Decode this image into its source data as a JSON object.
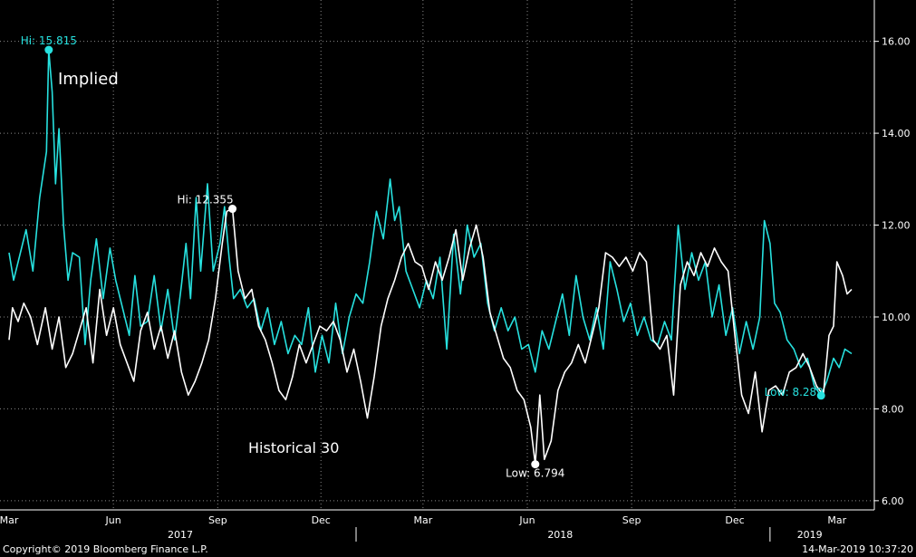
{
  "chart_data": {
    "type": "line",
    "y_axis": {
      "ticks": [
        "6.00",
        "8.00",
        "10.00",
        "12.00",
        "14.00",
        "16.00"
      ],
      "range": [
        5.8,
        16.9
      ],
      "position": "right"
    },
    "x_axis": {
      "months": [
        "Mar",
        "Jun",
        "Sep",
        "Dec",
        "Mar",
        "Jun",
        "Sep",
        "Dec",
        "Mar"
      ],
      "years": [
        "2017",
        "2018",
        "2019"
      ],
      "range": [
        "2017-03-01",
        "2019-03-14"
      ]
    },
    "grid": true,
    "series": [
      {
        "name": "Implied",
        "color": "#27e1df",
        "points": [
          [
            "2017-03-01",
            11.4
          ],
          [
            "2017-03-05",
            10.8
          ],
          [
            "2017-03-10",
            11.3
          ],
          [
            "2017-03-16",
            11.9
          ],
          [
            "2017-03-22",
            11.0
          ],
          [
            "2017-03-28",
            12.6
          ],
          [
            "2017-04-03",
            13.6
          ],
          [
            "2017-04-05",
            15.815
          ],
          [
            "2017-04-08",
            14.9
          ],
          [
            "2017-04-11",
            12.9
          ],
          [
            "2017-04-14",
            14.1
          ],
          [
            "2017-04-18",
            12.0
          ],
          [
            "2017-04-22",
            10.8
          ],
          [
            "2017-04-26",
            11.4
          ],
          [
            "2017-05-02",
            11.3
          ],
          [
            "2017-05-07",
            9.4
          ],
          [
            "2017-05-12",
            10.8
          ],
          [
            "2017-05-17",
            11.7
          ],
          [
            "2017-05-23",
            10.4
          ],
          [
            "2017-05-29",
            11.5
          ],
          [
            "2017-06-03",
            10.8
          ],
          [
            "2017-06-09",
            10.2
          ],
          [
            "2017-06-15",
            9.6
          ],
          [
            "2017-06-20",
            10.9
          ],
          [
            "2017-06-25",
            9.8
          ],
          [
            "2017-07-01",
            9.9
          ],
          [
            "2017-07-07",
            10.9
          ],
          [
            "2017-07-13",
            9.7
          ],
          [
            "2017-07-19",
            10.6
          ],
          [
            "2017-07-25",
            9.5
          ],
          [
            "2017-07-31",
            10.7
          ],
          [
            "2017-08-04",
            11.6
          ],
          [
            "2017-08-08",
            10.4
          ],
          [
            "2017-08-13",
            12.6
          ],
          [
            "2017-08-17",
            11.0
          ],
          [
            "2017-08-23",
            12.9
          ],
          [
            "2017-08-28",
            11.0
          ],
          [
            "2017-09-03",
            11.6
          ],
          [
            "2017-09-07",
            12.4
          ],
          [
            "2017-09-11",
            11.3
          ],
          [
            "2017-09-15",
            10.4
          ],
          [
            "2017-09-21",
            10.6
          ],
          [
            "2017-09-27",
            10.2
          ],
          [
            "2017-10-03",
            10.4
          ],
          [
            "2017-10-09",
            9.7
          ],
          [
            "2017-10-15",
            10.2
          ],
          [
            "2017-10-21",
            9.4
          ],
          [
            "2017-10-27",
            9.9
          ],
          [
            "2017-11-02",
            9.2
          ],
          [
            "2017-11-08",
            9.6
          ],
          [
            "2017-11-14",
            9.4
          ],
          [
            "2017-11-20",
            10.2
          ],
          [
            "2017-11-26",
            8.8
          ],
          [
            "2017-12-02",
            9.6
          ],
          [
            "2017-12-08",
            9.0
          ],
          [
            "2017-12-14",
            10.3
          ],
          [
            "2017-12-20",
            9.2
          ],
          [
            "2017-12-26",
            10.0
          ],
          [
            "2018-01-01",
            10.5
          ],
          [
            "2018-01-07",
            10.3
          ],
          [
            "2018-01-13",
            11.2
          ],
          [
            "2018-01-19",
            12.3
          ],
          [
            "2018-01-25",
            11.7
          ],
          [
            "2018-01-31",
            13.0
          ],
          [
            "2018-02-04",
            12.1
          ],
          [
            "2018-02-08",
            12.4
          ],
          [
            "2018-02-14",
            11.0
          ],
          [
            "2018-02-20",
            10.6
          ],
          [
            "2018-02-26",
            10.2
          ],
          [
            "2018-03-04",
            10.8
          ],
          [
            "2018-03-10",
            10.4
          ],
          [
            "2018-03-16",
            11.3
          ],
          [
            "2018-03-22",
            9.3
          ],
          [
            "2018-03-28",
            11.8
          ],
          [
            "2018-04-03",
            10.5
          ],
          [
            "2018-04-09",
            12.0
          ],
          [
            "2018-04-15",
            11.3
          ],
          [
            "2018-04-21",
            11.6
          ],
          [
            "2018-04-27",
            10.3
          ],
          [
            "2018-05-03",
            9.7
          ],
          [
            "2018-05-09",
            10.2
          ],
          [
            "2018-05-15",
            9.7
          ],
          [
            "2018-05-21",
            10.0
          ],
          [
            "2018-05-27",
            9.3
          ],
          [
            "2018-06-02",
            9.4
          ],
          [
            "2018-06-08",
            8.8
          ],
          [
            "2018-06-14",
            9.7
          ],
          [
            "2018-06-20",
            9.3
          ],
          [
            "2018-06-26",
            9.9
          ],
          [
            "2018-07-02",
            10.5
          ],
          [
            "2018-07-08",
            9.6
          ],
          [
            "2018-07-14",
            10.9
          ],
          [
            "2018-07-20",
            10.0
          ],
          [
            "2018-07-26",
            9.5
          ],
          [
            "2018-08-01",
            10.2
          ],
          [
            "2018-08-07",
            9.3
          ],
          [
            "2018-08-13",
            11.2
          ],
          [
            "2018-08-19",
            10.6
          ],
          [
            "2018-08-25",
            9.9
          ],
          [
            "2018-08-31",
            10.3
          ],
          [
            "2018-09-06",
            9.6
          ],
          [
            "2018-09-12",
            10.0
          ],
          [
            "2018-09-18",
            9.5
          ],
          [
            "2018-09-24",
            9.4
          ],
          [
            "2018-09-30",
            9.9
          ],
          [
            "2018-10-06",
            9.5
          ],
          [
            "2018-10-12",
            12.0
          ],
          [
            "2018-10-18",
            10.6
          ],
          [
            "2018-10-24",
            11.4
          ],
          [
            "2018-10-30",
            10.8
          ],
          [
            "2018-11-05",
            11.2
          ],
          [
            "2018-11-11",
            10.0
          ],
          [
            "2018-11-17",
            10.7
          ],
          [
            "2018-11-23",
            9.6
          ],
          [
            "2018-11-29",
            10.2
          ],
          [
            "2018-12-05",
            9.2
          ],
          [
            "2018-12-11",
            9.9
          ],
          [
            "2018-12-17",
            9.3
          ],
          [
            "2018-12-23",
            10.0
          ],
          [
            "2018-12-27",
            12.1
          ],
          [
            "2019-01-01",
            11.6
          ],
          [
            "2019-01-05",
            10.3
          ],
          [
            "2019-01-10",
            10.1
          ],
          [
            "2019-01-16",
            9.5
          ],
          [
            "2019-01-22",
            9.3
          ],
          [
            "2019-01-28",
            8.9
          ],
          [
            "2019-02-03",
            9.1
          ],
          [
            "2019-02-09",
            8.5
          ],
          [
            "2019-02-15",
            8.289
          ],
          [
            "2019-02-20",
            8.6
          ],
          [
            "2019-02-26",
            9.1
          ],
          [
            "2019-03-03",
            8.9
          ],
          [
            "2019-03-08",
            9.3
          ],
          [
            "2019-03-14",
            9.2
          ]
        ],
        "label": "Implied",
        "marker": {
          "date": "2017-04-05",
          "value": 15.815,
          "text": "Hi: 15.815"
        },
        "low_marker": {
          "date": "2019-02-15",
          "value": 8.289,
          "text": "Low: 8.289"
        }
      },
      {
        "name": "Historical 30",
        "color": "#ffffff",
        "points": [
          [
            "2017-03-01",
            9.5
          ],
          [
            "2017-03-04",
            10.2
          ],
          [
            "2017-03-09",
            9.9
          ],
          [
            "2017-03-14",
            10.3
          ],
          [
            "2017-03-20",
            10.0
          ],
          [
            "2017-03-26",
            9.4
          ],
          [
            "2017-04-02",
            10.2
          ],
          [
            "2017-04-08",
            9.3
          ],
          [
            "2017-04-14",
            10.0
          ],
          [
            "2017-04-20",
            8.9
          ],
          [
            "2017-04-26",
            9.2
          ],
          [
            "2017-05-02",
            9.7
          ],
          [
            "2017-05-08",
            10.2
          ],
          [
            "2017-05-14",
            9.0
          ],
          [
            "2017-05-20",
            10.6
          ],
          [
            "2017-05-26",
            9.6
          ],
          [
            "2017-06-01",
            10.2
          ],
          [
            "2017-06-07",
            9.4
          ],
          [
            "2017-06-13",
            9.0
          ],
          [
            "2017-06-19",
            8.6
          ],
          [
            "2017-06-25",
            9.7
          ],
          [
            "2017-07-01",
            10.1
          ],
          [
            "2017-07-07",
            9.3
          ],
          [
            "2017-07-13",
            9.8
          ],
          [
            "2017-07-19",
            9.1
          ],
          [
            "2017-07-25",
            9.7
          ],
          [
            "2017-07-31",
            8.8
          ],
          [
            "2017-08-06",
            8.3
          ],
          [
            "2017-08-12",
            8.6
          ],
          [
            "2017-08-18",
            9.0
          ],
          [
            "2017-08-24",
            9.5
          ],
          [
            "2017-08-30",
            10.4
          ],
          [
            "2017-09-05",
            11.6
          ],
          [
            "2017-09-09",
            12.3
          ],
          [
            "2017-09-14",
            12.355
          ],
          [
            "2017-09-19",
            11.0
          ],
          [
            "2017-09-25",
            10.4
          ],
          [
            "2017-10-01",
            10.6
          ],
          [
            "2017-10-07",
            9.8
          ],
          [
            "2017-10-13",
            9.5
          ],
          [
            "2017-10-19",
            9.0
          ],
          [
            "2017-10-25",
            8.4
          ],
          [
            "2017-10-31",
            8.2
          ],
          [
            "2017-11-06",
            8.7
          ],
          [
            "2017-11-12",
            9.4
          ],
          [
            "2017-11-18",
            9.0
          ],
          [
            "2017-11-24",
            9.4
          ],
          [
            "2017-11-30",
            9.8
          ],
          [
            "2017-12-06",
            9.7
          ],
          [
            "2017-12-12",
            9.9
          ],
          [
            "2017-12-18",
            9.5
          ],
          [
            "2017-12-24",
            8.8
          ],
          [
            "2017-12-30",
            9.3
          ],
          [
            "2018-01-05",
            8.6
          ],
          [
            "2018-01-11",
            7.8
          ],
          [
            "2018-01-17",
            8.7
          ],
          [
            "2018-01-23",
            9.8
          ],
          [
            "2018-01-29",
            10.4
          ],
          [
            "2018-02-04",
            10.8
          ],
          [
            "2018-02-10",
            11.3
          ],
          [
            "2018-02-16",
            11.6
          ],
          [
            "2018-02-22",
            11.2
          ],
          [
            "2018-02-28",
            11.1
          ],
          [
            "2018-03-06",
            10.6
          ],
          [
            "2018-03-12",
            11.2
          ],
          [
            "2018-03-18",
            10.8
          ],
          [
            "2018-03-24",
            11.3
          ],
          [
            "2018-03-30",
            11.9
          ],
          [
            "2018-04-05",
            10.8
          ],
          [
            "2018-04-11",
            11.5
          ],
          [
            "2018-04-17",
            12.0
          ],
          [
            "2018-04-23",
            11.3
          ],
          [
            "2018-04-29",
            10.1
          ],
          [
            "2018-05-05",
            9.6
          ],
          [
            "2018-05-11",
            9.1
          ],
          [
            "2018-05-17",
            8.9
          ],
          [
            "2018-05-23",
            8.4
          ],
          [
            "2018-05-29",
            8.2
          ],
          [
            "2018-06-04",
            7.6
          ],
          [
            "2018-06-08",
            6.794
          ],
          [
            "2018-06-12",
            8.3
          ],
          [
            "2018-06-16",
            6.9
          ],
          [
            "2018-06-22",
            7.3
          ],
          [
            "2018-06-28",
            8.4
          ],
          [
            "2018-07-04",
            8.8
          ],
          [
            "2018-07-10",
            9.0
          ],
          [
            "2018-07-16",
            9.4
          ],
          [
            "2018-07-22",
            9.0
          ],
          [
            "2018-07-28",
            9.6
          ],
          [
            "2018-08-03",
            10.2
          ],
          [
            "2018-08-09",
            11.4
          ],
          [
            "2018-08-15",
            11.3
          ],
          [
            "2018-08-21",
            11.1
          ],
          [
            "2018-08-27",
            11.3
          ],
          [
            "2018-09-02",
            11.0
          ],
          [
            "2018-09-08",
            11.4
          ],
          [
            "2018-09-14",
            11.2
          ],
          [
            "2018-09-20",
            9.5
          ],
          [
            "2018-09-26",
            9.3
          ],
          [
            "2018-10-02",
            9.6
          ],
          [
            "2018-10-08",
            8.3
          ],
          [
            "2018-10-14",
            10.7
          ],
          [
            "2018-10-20",
            11.2
          ],
          [
            "2018-10-26",
            10.9
          ],
          [
            "2018-11-01",
            11.4
          ],
          [
            "2018-11-07",
            11.1
          ],
          [
            "2018-11-13",
            11.5
          ],
          [
            "2018-11-19",
            11.2
          ],
          [
            "2018-11-25",
            11.0
          ],
          [
            "2018-12-01",
            9.6
          ],
          [
            "2018-12-07",
            8.3
          ],
          [
            "2018-12-13",
            7.9
          ],
          [
            "2018-12-19",
            8.8
          ],
          [
            "2018-12-25",
            7.5
          ],
          [
            "2018-12-31",
            8.4
          ],
          [
            "2019-01-06",
            8.5
          ],
          [
            "2019-01-12",
            8.3
          ],
          [
            "2019-01-18",
            8.8
          ],
          [
            "2019-01-24",
            8.9
          ],
          [
            "2019-01-30",
            9.2
          ],
          [
            "2019-02-05",
            8.9
          ],
          [
            "2019-02-11",
            8.5
          ],
          [
            "2019-02-17",
            8.3
          ],
          [
            "2019-02-22",
            9.6
          ],
          [
            "2019-02-26",
            9.8
          ],
          [
            "2019-03-01",
            11.2
          ],
          [
            "2019-03-06",
            10.9
          ],
          [
            "2019-03-10",
            10.5
          ],
          [
            "2019-03-14",
            10.6
          ]
        ],
        "label": "Historical 30",
        "marker": {
          "date": "2017-09-14",
          "value": 12.355,
          "text": "Hi: 12.355"
        },
        "low_marker": {
          "date": "2018-06-08",
          "value": 6.794,
          "text": "Low: 6.794"
        }
      }
    ]
  },
  "footer": {
    "copyright": "Copyright© 2019 Bloomberg Finance L.P.",
    "timestamp": "14-Mar-2019 10:37:20"
  }
}
